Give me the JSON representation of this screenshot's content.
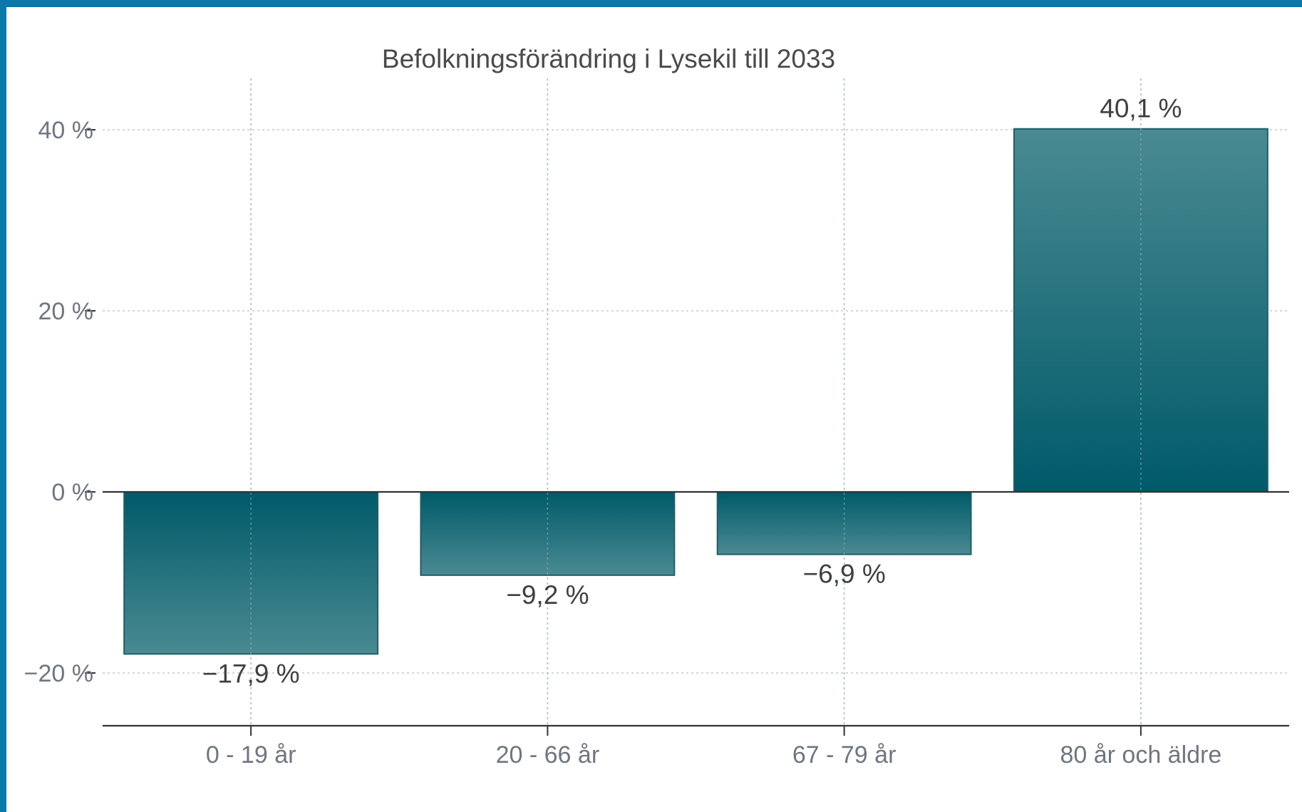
{
  "accent_color": "#0a78a8",
  "chart_data": {
    "type": "bar",
    "title": "Befolkningsförändring i Lysekil till 2033",
    "xlabel": "",
    "ylabel": "",
    "categories": [
      "0 - 19 år",
      "20 - 66 år",
      "67 - 79 år",
      "80 år och äldre"
    ],
    "values": [
      -17.9,
      -9.2,
      -6.9,
      40.1
    ],
    "data_labels": [
      "−17,9 %",
      "−9,2 %",
      "−6,9 %",
      "40,1 %"
    ],
    "ylim": [
      -26,
      46
    ],
    "yticks": [
      -20,
      0,
      20,
      40
    ],
    "ytick_labels": [
      "−20 %",
      "0 %",
      "20 %",
      "40 %"
    ],
    "grid": true,
    "legend": "none",
    "bar_color_dark": "#005a69",
    "bar_color_light": "#4a8a92"
  }
}
